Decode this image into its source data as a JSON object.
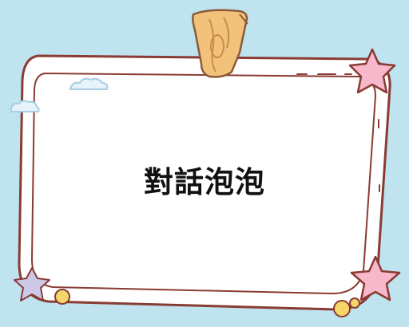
{
  "card": {
    "title": "對話泡泡"
  },
  "colors": {
    "background": "#bfe3ef",
    "frame_outline": "#8a3b33",
    "frame_fill": "#ffffff",
    "clip": "#f2c27a",
    "star_pink": "#f7b8cc",
    "star_lilac": "#ccc8e8",
    "dot_yellow": "#f5d66b",
    "cloud": "#e6f3fb"
  }
}
